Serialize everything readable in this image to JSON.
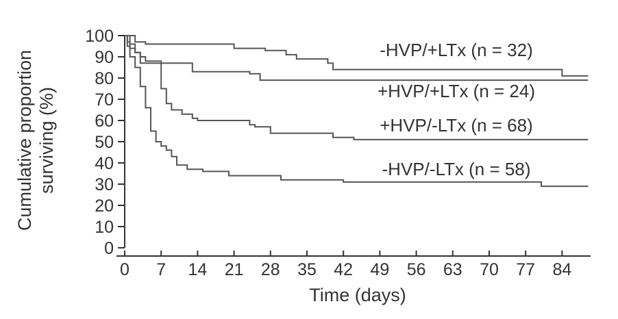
{
  "chart_data": {
    "type": "line",
    "xlabel": "Time (days)",
    "ylabel_lines": [
      "Cumulative proportion",
      "surviving (%)"
    ],
    "x_ticks": [
      0,
      7,
      14,
      21,
      28,
      35,
      42,
      49,
      56,
      63,
      70,
      77,
      84
    ],
    "y_ticks": [
      0,
      10,
      20,
      30,
      40,
      50,
      60,
      70,
      80,
      90,
      100
    ],
    "xlim": [
      0,
      89
    ],
    "ylim": [
      0,
      100
    ],
    "grid": false,
    "series": [
      {
        "name": "-HVP/+LTx (n = 32)",
        "points": [
          [
            0,
            100
          ],
          [
            2,
            100
          ],
          [
            2,
            97
          ],
          [
            4,
            97
          ],
          [
            4,
            96
          ],
          [
            21,
            96
          ],
          [
            21,
            94
          ],
          [
            27,
            94
          ],
          [
            27,
            93
          ],
          [
            31,
            93
          ],
          [
            31,
            91
          ],
          [
            33,
            91
          ],
          [
            33,
            89
          ],
          [
            39,
            89
          ],
          [
            39,
            87
          ],
          [
            40,
            87
          ],
          [
            40,
            84
          ],
          [
            84,
            84
          ],
          [
            84,
            81
          ],
          [
            89,
            81
          ]
        ]
      },
      {
        "name": "+HVP/+LTx (n = 24)",
        "points": [
          [
            0,
            100
          ],
          [
            1,
            100
          ],
          [
            1,
            96
          ],
          [
            2,
            96
          ],
          [
            2,
            92
          ],
          [
            3,
            92
          ],
          [
            3,
            87
          ],
          [
            13,
            87
          ],
          [
            13,
            83
          ],
          [
            24,
            83
          ],
          [
            24,
            82
          ],
          [
            26,
            82
          ],
          [
            26,
            79
          ],
          [
            89,
            79
          ]
        ]
      },
      {
        "name": "+HVP/-LTx (n = 68)",
        "points": [
          [
            0,
            100
          ],
          [
            0.5,
            100
          ],
          [
            0.5,
            97
          ],
          [
            1,
            97
          ],
          [
            1,
            94
          ],
          [
            2,
            94
          ],
          [
            2,
            92
          ],
          [
            3,
            92
          ],
          [
            3,
            90
          ],
          [
            4,
            90
          ],
          [
            4,
            88
          ],
          [
            7,
            88
          ],
          [
            7,
            75
          ],
          [
            8,
            75
          ],
          [
            8,
            68
          ],
          [
            9,
            68
          ],
          [
            9,
            65
          ],
          [
            11,
            65
          ],
          [
            11,
            63
          ],
          [
            13,
            63
          ],
          [
            13,
            61
          ],
          [
            14,
            61
          ],
          [
            14,
            60
          ],
          [
            24,
            60
          ],
          [
            24,
            58
          ],
          [
            25,
            58
          ],
          [
            25,
            57
          ],
          [
            28,
            57
          ],
          [
            28,
            54
          ],
          [
            40,
            54
          ],
          [
            40,
            52
          ],
          [
            44,
            52
          ],
          [
            44,
            51
          ],
          [
            89,
            51
          ]
        ]
      },
      {
        "name": "-HVP/-LTx (n = 58)",
        "points": [
          [
            0,
            100
          ],
          [
            0.5,
            100
          ],
          [
            0.5,
            95
          ],
          [
            1,
            95
          ],
          [
            1,
            90
          ],
          [
            2,
            90
          ],
          [
            2,
            85
          ],
          [
            3,
            85
          ],
          [
            3,
            76
          ],
          [
            4,
            76
          ],
          [
            4,
            66
          ],
          [
            5,
            66
          ],
          [
            5,
            55
          ],
          [
            6,
            55
          ],
          [
            6,
            50
          ],
          [
            7,
            50
          ],
          [
            7,
            48
          ],
          [
            8,
            48
          ],
          [
            8,
            46
          ],
          [
            9,
            46
          ],
          [
            9,
            43
          ],
          [
            10,
            43
          ],
          [
            10,
            39
          ],
          [
            12,
            39
          ],
          [
            12,
            37
          ],
          [
            15,
            37
          ],
          [
            15,
            36
          ],
          [
            20,
            36
          ],
          [
            20,
            34
          ],
          [
            30,
            34
          ],
          [
            30,
            32
          ],
          [
            42,
            32
          ],
          [
            42,
            31
          ],
          [
            80,
            31
          ],
          [
            80,
            29
          ],
          [
            89,
            29
          ]
        ]
      }
    ]
  }
}
